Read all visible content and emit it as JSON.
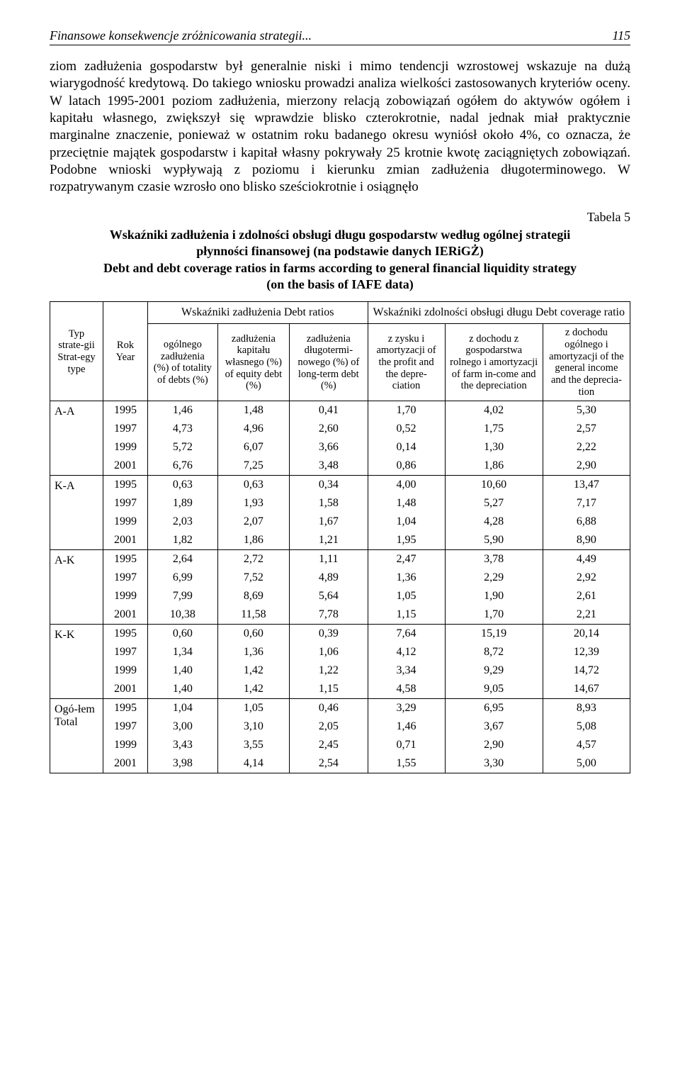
{
  "header": {
    "running_title": "Finansowe konsekwencje zróżnicowania strategii...",
    "page_number": "115"
  },
  "paragraph": "ziom zadłużenia gospodarstw był generalnie niski i mimo tendencji wzrostowej wskazuje na dużą wiarygodność kredytową. Do takiego wniosku prowadzi analiza wielkości zastosowanych kryteriów oceny. W latach 1995-2001 poziom zadłużenia, mierzony relacją zobowiązań ogółem do aktywów ogółem i kapitału własnego, zwiększył się wprawdzie blisko czterokrotnie, nadal jednak miał praktycznie marginalne znaczenie, ponieważ w ostatnim roku badanego okresu wyniósł około 4%, co oznacza, że przeciętnie majątek gospodarstw i kapitał własny pokrywały 25 krotnie kwotę zaciągniętych zobowiązań. Podobne wnioski wypływają z poziomu i kierunku zmian zadłużenia długoterminowego. W rozpatrywanym czasie wzrosło ono blisko sześciokrotnie i osiągnęło",
  "table_caption": {
    "label": "Tabela 5",
    "title_pl_1": "Wskaźniki zadłużenia i zdolności obsługi długu gospodarstw według ogólnej strategii",
    "title_pl_2": "płynności finansowej (na podstawie danych IERiGŻ)",
    "title_en_1": "Debt and debt coverage ratios in farms according to general financial liquidity strategy",
    "title_en_2": "(on the basis of IAFE data)"
  },
  "table": {
    "col_headers": {
      "type": "Typ strate-gii Strat-egy type",
      "year": "Rok Year",
      "group_debt": "Wskaźniki zadłużenia\nDebt ratios",
      "group_coverage": "Wskaźniki zdolności obsługi długu\nDebt coverage ratio",
      "c1": "ogólnego zadłużenia (%) of totality of debts (%)",
      "c2": "zadłużenia kapitału własnego (%) of equity debt (%)",
      "c3": "zadłużenia długotermi-nowego (%) of long-term debt (%)",
      "c4": "z zysku i amortyzacji of the profit and the depre-ciation",
      "c5": "z dochodu z gospodarstwa rolnego i amortyzacji of farm in-come and the depreciation",
      "c6": "z dochodu ogólnego i amortyzacji of the general income and the deprecia-tion"
    },
    "blocks": [
      {
        "type": "A-A",
        "rows": [
          {
            "year": "1995",
            "v": [
              "1,46",
              "1,48",
              "0,41",
              "1,70",
              "4,02",
              "5,30"
            ]
          },
          {
            "year": "1997",
            "v": [
              "4,73",
              "4,96",
              "2,60",
              "0,52",
              "1,75",
              "2,57"
            ]
          },
          {
            "year": "1999",
            "v": [
              "5,72",
              "6,07",
              "3,66",
              "0,14",
              "1,30",
              "2,22"
            ]
          },
          {
            "year": "2001",
            "v": [
              "6,76",
              "7,25",
              "3,48",
              "0,86",
              "1,86",
              "2,90"
            ]
          }
        ]
      },
      {
        "type": "K-A",
        "rows": [
          {
            "year": "1995",
            "v": [
              "0,63",
              "0,63",
              "0,34",
              "4,00",
              "10,60",
              "13,47"
            ]
          },
          {
            "year": "1997",
            "v": [
              "1,89",
              "1,93",
              "1,58",
              "1,48",
              "5,27",
              "7,17"
            ]
          },
          {
            "year": "1999",
            "v": [
              "2,03",
              "2,07",
              "1,67",
              "1,04",
              "4,28",
              "6,88"
            ]
          },
          {
            "year": "2001",
            "v": [
              "1,82",
              "1,86",
              "1,21",
              "1,95",
              "5,90",
              "8,90"
            ]
          }
        ]
      },
      {
        "type": "A-K",
        "rows": [
          {
            "year": "1995",
            "v": [
              "2,64",
              "2,72",
              "1,11",
              "2,47",
              "3,78",
              "4,49"
            ]
          },
          {
            "year": "1997",
            "v": [
              "6,99",
              "7,52",
              "4,89",
              "1,36",
              "2,29",
              "2,92"
            ]
          },
          {
            "year": "1999",
            "v": [
              "7,99",
              "8,69",
              "5,64",
              "1,05",
              "1,90",
              "2,61"
            ]
          },
          {
            "year": "2001",
            "v": [
              "10,38",
              "11,58",
              "7,78",
              "1,15",
              "1,70",
              "2,21"
            ]
          }
        ]
      },
      {
        "type": "K-K",
        "rows": [
          {
            "year": "1995",
            "v": [
              "0,60",
              "0,60",
              "0,39",
              "7,64",
              "15,19",
              "20,14"
            ]
          },
          {
            "year": "1997",
            "v": [
              "1,34",
              "1,36",
              "1,06",
              "4,12",
              "8,72",
              "12,39"
            ]
          },
          {
            "year": "1999",
            "v": [
              "1,40",
              "1,42",
              "1,22",
              "3,34",
              "9,29",
              "14,72"
            ]
          },
          {
            "year": "2001",
            "v": [
              "1,40",
              "1,42",
              "1,15",
              "4,58",
              "9,05",
              "14,67"
            ]
          }
        ]
      },
      {
        "type": "Ogó-łem Total",
        "rows": [
          {
            "year": "1995",
            "v": [
              "1,04",
              "1,05",
              "0,46",
              "3,29",
              "6,95",
              "8,93"
            ]
          },
          {
            "year": "1997",
            "v": [
              "3,00",
              "3,10",
              "2,05",
              "1,46",
              "3,67",
              "5,08"
            ]
          },
          {
            "year": "1999",
            "v": [
              "3,43",
              "3,55",
              "2,45",
              "0,71",
              "2,90",
              "4,57"
            ]
          },
          {
            "year": "2001",
            "v": [
              "3,98",
              "4,14",
              "2,54",
              "1,55",
              "3,30",
              "5,00"
            ]
          }
        ]
      }
    ]
  }
}
